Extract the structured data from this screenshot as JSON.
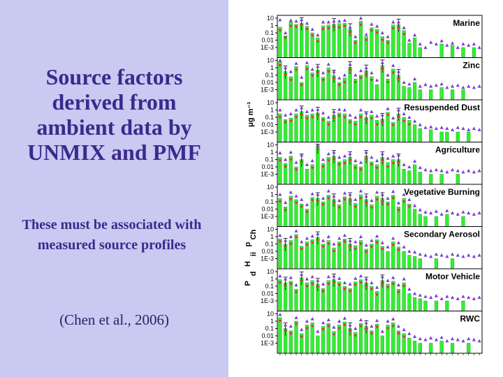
{
  "slide": {
    "title": "Source factors derived from ambient data by UNMIX and PMF",
    "subtitle": "These must be associated with measured source profiles",
    "citation": "(Chen et al., 2006)"
  },
  "colors": {
    "left_panel_bg": "#c9c9f2",
    "title_text": "#3b2a8c",
    "bar": "#33ee33",
    "bar_edge": "#119911",
    "triangle_pmf": "#7a3fd0",
    "triangle_unmix": "#e0304a"
  },
  "chart_data": {
    "type": "bar",
    "yscale": "log",
    "ylim": [
      0.0001,
      10
    ],
    "y_ticks": [
      "10",
      "1",
      "0.1",
      "0.01",
      "1E-3"
    ],
    "ylabel": "μg m⁻³",
    "ylabel_lower_fragments": [
      "P",
      "d",
      "H",
      "ii",
      "p",
      "Ch"
    ],
    "xlabel": "",
    "n_species": 38,
    "legend": null,
    "panels": [
      {
        "name": "Marine",
        "bars": [
          0.6,
          0.04,
          3,
          1.5,
          2,
          0.8,
          0.1,
          0.02,
          0.9,
          1.2,
          1.5,
          1.8,
          2,
          0.3,
          0.01,
          4,
          0.03,
          0.5,
          0.3,
          0.03,
          0.01,
          1.2,
          1.3,
          0.2,
          0.004,
          0.02,
          0.001,
          0,
          0,
          0,
          0.003,
          0,
          0.002,
          0,
          0.001,
          0,
          0.001,
          0
        ],
        "pmf": [
          6,
          0.1,
          5,
          4,
          6,
          2,
          0.3,
          0.05,
          3,
          3,
          4,
          4,
          5,
          0.6,
          0.03,
          10,
          0.06,
          1.5,
          0.8,
          0.1,
          0.03,
          3,
          3,
          0.5,
          0.01,
          0.05,
          0.003,
          0.001,
          0.005,
          0.003,
          0.008,
          0.002,
          0.004,
          0.001,
          0.003,
          0.002,
          0.003,
          0.001
        ],
        "unmix": [
          0.2,
          0.02,
          0.8,
          0.6,
          1,
          0.3,
          0.04,
          0.006,
          0.3,
          0.4,
          0.5,
          0.5,
          0.8,
          0.1,
          0.004,
          1.2,
          0.01,
          0.2,
          0.1,
          0.01,
          0.004,
          0.4,
          0.4,
          0.06,
          0,
          0,
          0,
          0,
          0,
          0,
          0,
          0,
          0,
          0,
          0,
          0,
          0,
          0
        ]
      },
      {
        "name": "Zinc",
        "bars": [
          6,
          0.3,
          0.06,
          1.5,
          0.01,
          2,
          0.2,
          0.5,
          0.05,
          1,
          0.08,
          0.01,
          0.04,
          1.2,
          0.03,
          0.1,
          0.4,
          0.06,
          0.005,
          2,
          0.03,
          0.7,
          0.1,
          0.003,
          0.002,
          0.01,
          0.001,
          0,
          0.001,
          0,
          0.002,
          0,
          0.001,
          0,
          0.001,
          0,
          0,
          0
        ],
        "pmf": [
          10,
          1,
          0.3,
          4,
          0.05,
          5,
          0.6,
          1.5,
          0.2,
          3,
          0.3,
          0.04,
          0.1,
          3,
          0.1,
          0.4,
          1,
          0.2,
          0.02,
          5,
          0.1,
          2,
          0.3,
          0.01,
          0.006,
          0.03,
          0.003,
          0.005,
          0.003,
          0.004,
          0.006,
          0.002,
          0.003,
          0.004,
          0.002,
          0.003,
          0.002,
          0.003
        ],
        "unmix": [
          2,
          0.1,
          0.02,
          0.5,
          0.004,
          0.6,
          0.08,
          0.2,
          0.02,
          0.3,
          0.03,
          0.004,
          0.01,
          0.4,
          0.01,
          0.04,
          0.1,
          0.02,
          0,
          0.6,
          0.01,
          0.2,
          0.03,
          0,
          0,
          0,
          0,
          0,
          0,
          0,
          0,
          0,
          0,
          0,
          0,
          0,
          0,
          0
        ]
      },
      {
        "name": "Resuspended Dust",
        "bars": [
          0.3,
          0.05,
          0.08,
          0.3,
          0.6,
          0.2,
          0.3,
          0.4,
          0.1,
          0.03,
          0.2,
          0.4,
          0.3,
          0.05,
          0.03,
          0.3,
          0.1,
          0.2,
          0.04,
          0.06,
          0.5,
          0.02,
          0.3,
          0.1,
          0.04,
          0.01,
          0.003,
          0,
          0.002,
          0,
          0.001,
          0.001,
          0,
          0.001,
          0,
          0.001,
          0,
          0
        ],
        "pmf": [
          1,
          0.2,
          0.3,
          1,
          2,
          0.6,
          1,
          1.2,
          0.4,
          0.1,
          0.6,
          1.2,
          1,
          0.2,
          0.1,
          1,
          0.4,
          0.6,
          0.15,
          0.2,
          1.5,
          0.08,
          1,
          0.3,
          0.1,
          0.03,
          0.01,
          0.004,
          0.005,
          0.003,
          0.004,
          0.003,
          0.002,
          0.004,
          0.003,
          0.002,
          0.003,
          0.002
        ],
        "unmix": [
          0.1,
          0.02,
          0.03,
          0.1,
          0.2,
          0.07,
          0.1,
          0.15,
          0.04,
          0.01,
          0.07,
          0.15,
          0.1,
          0.02,
          0.01,
          0.1,
          0.04,
          0.07,
          0.01,
          0.02,
          0.2,
          0.008,
          0.1,
          0.03,
          0.01,
          0,
          0,
          0,
          0,
          0,
          0,
          0,
          0,
          0,
          0,
          0,
          0,
          0
        ]
      },
      {
        "name": "Agriculture",
        "bars": [
          0.2,
          0.03,
          0.3,
          0.01,
          0.1,
          0.005,
          0.02,
          6,
          0.03,
          0.2,
          0.3,
          0.05,
          0.1,
          0.2,
          0.02,
          0.01,
          0.3,
          0.05,
          0.02,
          0.2,
          0.04,
          0.1,
          0.1,
          0.005,
          0.003,
          0.02,
          0.002,
          0,
          0.001,
          0,
          0.001,
          0,
          0,
          0.001,
          0,
          0,
          0,
          0
        ],
        "pmf": [
          0.8,
          0.1,
          1,
          0.04,
          0.4,
          0.02,
          0.07,
          10,
          0.1,
          0.6,
          1,
          0.2,
          0.3,
          0.6,
          0.07,
          0.04,
          1,
          0.2,
          0.07,
          0.6,
          0.15,
          0.3,
          0.4,
          0.02,
          0.01,
          0.06,
          0.008,
          0.004,
          0.003,
          0.004,
          0.003,
          0.002,
          0.004,
          0.003,
          0.002,
          0.003,
          0.002,
          0.003
        ],
        "unmix": [
          0.07,
          0.01,
          0.1,
          0.004,
          0.04,
          0,
          0.007,
          2,
          0.01,
          0.07,
          0.1,
          0.02,
          0.03,
          0.07,
          0.007,
          0.004,
          0.1,
          0.02,
          0.007,
          0.07,
          0.01,
          0.03,
          0.04,
          0,
          0,
          0,
          0,
          0,
          0,
          0,
          0,
          0,
          0,
          0,
          0,
          0,
          0,
          0
        ]
      },
      {
        "name": "Vegetative Burning",
        "bars": [
          0.3,
          0.02,
          0.6,
          0.2,
          0.05,
          0.01,
          0.4,
          0.3,
          0.1,
          0.8,
          0.2,
          0.04,
          0.5,
          0.3,
          0.06,
          0.9,
          0.2,
          0.04,
          0.6,
          0.3,
          0.1,
          0.8,
          0.02,
          0.3,
          0.05,
          0.01,
          0.002,
          0.001,
          0,
          0.001,
          0,
          0.002,
          0,
          0,
          0.001,
          0,
          0,
          0
        ],
        "pmf": [
          1,
          0.08,
          2,
          0.6,
          0.2,
          0.04,
          1.2,
          1,
          0.3,
          3,
          0.6,
          0.15,
          1.5,
          1,
          0.2,
          3,
          0.6,
          0.15,
          2,
          1,
          0.3,
          2.5,
          0.07,
          1,
          0.2,
          0.03,
          0.008,
          0.004,
          0.003,
          0.005,
          0.002,
          0.006,
          0.003,
          0.002,
          0.004,
          0.003,
          0.002,
          0.003
        ],
        "unmix": [
          0.1,
          0.007,
          0.2,
          0.07,
          0.02,
          0.004,
          0.15,
          0.1,
          0.04,
          0.3,
          0.07,
          0.015,
          0.2,
          0.1,
          0.02,
          0.3,
          0.07,
          0.015,
          0.2,
          0.1,
          0.04,
          0.3,
          0.007,
          0.1,
          0.02,
          0,
          0,
          0,
          0,
          0,
          0,
          0,
          0,
          0,
          0,
          0,
          0,
          0
        ]
      },
      {
        "name": "Secondary Aerosol",
        "bars": [
          0.5,
          0.1,
          0.3,
          2,
          0.05,
          0.2,
          0.4,
          0.8,
          0.1,
          0.3,
          0.03,
          0.2,
          0.5,
          0.1,
          0.06,
          0.3,
          0.02,
          0.1,
          0.4,
          0.05,
          0.01,
          0.2,
          0.04,
          0.01,
          0.003,
          0.002,
          0.001,
          0,
          0,
          0.001,
          0,
          0,
          0.001,
          0,
          0,
          0,
          0,
          0
        ],
        "pmf": [
          1.5,
          0.3,
          1,
          6,
          0.2,
          0.6,
          1.2,
          2.5,
          0.3,
          1,
          0.1,
          0.6,
          1.5,
          0.3,
          0.2,
          1,
          0.07,
          0.3,
          1.2,
          0.15,
          0.04,
          0.6,
          0.15,
          0.04,
          0.01,
          0.008,
          0.004,
          0.003,
          0.002,
          0.004,
          0.003,
          0.002,
          0.004,
          0.003,
          0.002,
          0.003,
          0.002,
          0.003
        ],
        "unmix": [
          0.2,
          0.04,
          0.1,
          0.8,
          0.02,
          0.07,
          0.15,
          0.3,
          0.04,
          0.1,
          0.01,
          0.07,
          0.2,
          0.04,
          0.02,
          0.1,
          0.008,
          0.04,
          0.15,
          0.02,
          0,
          0.07,
          0.015,
          0,
          0,
          0,
          0,
          0,
          0,
          0,
          0,
          0,
          0,
          0,
          0,
          0,
          0,
          0
        ]
      },
      {
        "name": "Motor Vehicle",
        "bars": [
          0.8,
          0.3,
          0.5,
          0.04,
          1.5,
          0.3,
          0.6,
          0.2,
          0.05,
          0.6,
          0.8,
          0.4,
          0.1,
          0.05,
          0.4,
          0.8,
          0.3,
          0.1,
          0.02,
          0.6,
          0.2,
          0.5,
          0.04,
          0.3,
          0.01,
          0.003,
          0.002,
          0.001,
          0,
          0.001,
          0,
          0.001,
          0,
          0,
          0.001,
          0,
          0,
          0
        ],
        "pmf": [
          2.5,
          1,
          1.5,
          0.15,
          4,
          1,
          2,
          0.6,
          0.2,
          2,
          2.5,
          1.2,
          0.3,
          0.2,
          1.2,
          2.5,
          1,
          0.3,
          0.07,
          2,
          0.6,
          1.5,
          0.15,
          1,
          0.04,
          0.01,
          0.006,
          0.004,
          0.003,
          0.005,
          0.002,
          0.004,
          0.003,
          0.002,
          0.004,
          0.003,
          0.002,
          0.003
        ],
        "unmix": [
          0.3,
          0.1,
          0.2,
          0.015,
          0.5,
          0.1,
          0.2,
          0.07,
          0.02,
          0.2,
          0.3,
          0.15,
          0.04,
          0.02,
          0.15,
          0.3,
          0.1,
          0.04,
          0.007,
          0.2,
          0.07,
          0.2,
          0.015,
          0.1,
          0,
          0,
          0,
          0,
          0,
          0,
          0,
          0,
          0,
          0,
          0,
          0,
          0,
          0
        ]
      },
      {
        "name": "RWC",
        "bars": [
          3,
          0.1,
          0.05,
          1,
          0.02,
          0.3,
          0.6,
          0.01,
          0.2,
          0.5,
          0.04,
          0.3,
          0.8,
          0.1,
          0.03,
          0.5,
          0.2,
          0.05,
          0.4,
          0.01,
          0.3,
          0.6,
          0.05,
          0.02,
          0.005,
          0.002,
          0.001,
          0,
          0.001,
          0,
          0.002,
          0,
          0.001,
          0,
          0,
          0.001,
          0,
          0
        ],
        "pmf": [
          8,
          0.3,
          0.2,
          3,
          0.07,
          1,
          2,
          0.04,
          0.6,
          1.5,
          0.15,
          1,
          2.5,
          0.3,
          0.1,
          1.5,
          0.6,
          0.2,
          1.2,
          0.04,
          1,
          2,
          0.2,
          0.07,
          0.02,
          0.008,
          0.004,
          0.003,
          0.005,
          0.003,
          0.006,
          0.002,
          0.004,
          0.003,
          0.002,
          0.004,
          0.003,
          0.002
        ],
        "unmix": [
          1,
          0.04,
          0.02,
          0.4,
          0.007,
          0.1,
          0.2,
          0,
          0.07,
          0.2,
          0.015,
          0.1,
          0.3,
          0.04,
          0.01,
          0.2,
          0.07,
          0.02,
          0.15,
          0,
          0.1,
          0.2,
          0.02,
          0.007,
          0,
          0,
          0,
          0,
          0,
          0,
          0,
          0,
          0,
          0,
          0,
          0,
          0,
          0
        ]
      }
    ]
  }
}
